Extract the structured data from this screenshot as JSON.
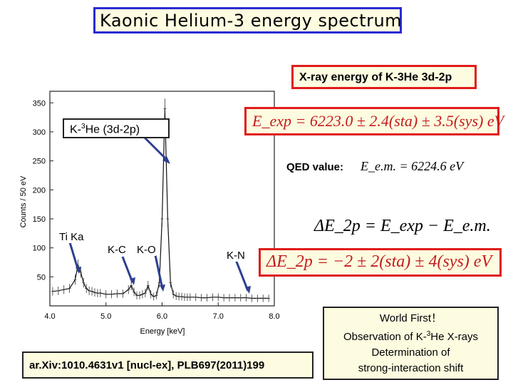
{
  "slide": {
    "title": "Kaonic Helium-3 energy spectrum",
    "xray_box_label": "X-ray energy of K-3He 3d-2p",
    "eq_exp": "E_exp = 6223.0 ± 2.4(sta) ± 3.5(sys) eV",
    "qed_label": "QED value:",
    "eq_qed": "E_e.m. = 6224.6 eV",
    "eq_delta_def": "ΔE_2p = E_exp − E_e.m.",
    "eq_delta_val": "ΔE_2p = −2 ± 2(sta) ± 4(sys) eV",
    "peak_label_prefix": "K-",
    "peak_label_sup": "3",
    "peak_label_suffix": "He (3d-2p)",
    "ti_label": "Ti Ka",
    "kc_label": "K-C",
    "ko_label": "K-O",
    "kn_label": "K-N",
    "reference": "ar.Xiv:1010.4631v1 [nucl-ex], PLB697(2011)199",
    "summary_line1": "World First！",
    "summary_line2_prefix": "Observation of K-",
    "summary_line2_sup": "3",
    "summary_line2_suffix": "He X-rays",
    "summary_line3": "Determination of",
    "summary_line4": "strong-interaction shift"
  },
  "chart_data": {
    "type": "line",
    "xlabel": "Energy [keV]",
    "ylabel": "Counts / 50 eV",
    "x_ticks": [
      "4.0",
      "5.0",
      "6.0",
      "7.0",
      "8.0"
    ],
    "y_ticks": [
      "50",
      "100",
      "150",
      "200",
      "250",
      "300",
      "350"
    ],
    "xlim": [
      4.0,
      8.0
    ],
    "ylim": [
      0,
      370
    ],
    "series": [
      {
        "x": [
          4.05,
          4.15,
          4.25,
          4.35,
          4.45,
          4.5,
          4.55,
          4.6,
          4.65,
          4.7,
          4.75,
          4.8,
          4.85,
          4.9,
          5.0,
          5.1,
          5.2,
          5.3,
          5.4,
          5.45,
          5.5,
          5.55,
          5.6,
          5.65,
          5.7,
          5.75,
          5.8,
          5.85,
          5.9,
          5.95,
          6.0,
          6.05,
          6.1,
          6.15,
          6.2,
          6.25,
          6.3,
          6.35,
          6.4,
          6.45,
          6.5,
          6.6,
          6.7,
          6.8,
          6.9,
          7.0,
          7.1,
          7.2,
          7.3,
          7.4,
          7.5,
          7.6,
          7.7,
          7.8,
          7.9
        ],
        "y": [
          25,
          26,
          28,
          30,
          45,
          70,
          58,
          40,
          30,
          26,
          25,
          23,
          22,
          22,
          20,
          20,
          21,
          21,
          28,
          35,
          24,
          18,
          18,
          20,
          22,
          35,
          20,
          16,
          18,
          40,
          150,
          340,
          150,
          40,
          20,
          17,
          16,
          16,
          15,
          15,
          15,
          15,
          14,
          14,
          15,
          15,
          14,
          14,
          14,
          14,
          14,
          13,
          13,
          13,
          13
        ]
      }
    ]
  }
}
